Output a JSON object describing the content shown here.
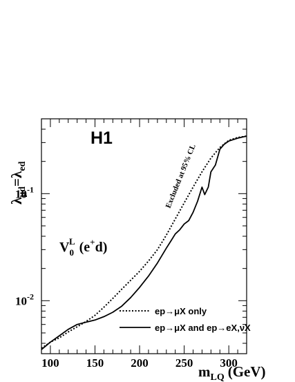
{
  "chart_data": {
    "type": "line",
    "title": "",
    "experiment_label": "H1",
    "model_label": {
      "base": "V",
      "sub": "0",
      "sup": "L",
      "paren": "(e",
      "paren_sup": "+",
      "paren_end": "d)"
    },
    "xlabel": {
      "base": "m",
      "sub": "LQ",
      "unit": "(GeV)"
    },
    "ylabel": {
      "first": "λ",
      "first_sub": "μd",
      "eq": "=λ",
      "second_sub": "ed"
    },
    "annotation": "Excluded at 95% CL",
    "xlim": [
      90,
      320
    ],
    "ylim": [
      0.0032,
      0.5
    ],
    "yscale": "log",
    "x_ticks": [
      100,
      150,
      200,
      250,
      300
    ],
    "y_ticks": [
      {
        "value": 0.01,
        "base": "10",
        "exp": "-2"
      },
      {
        "value": 0.1,
        "base": "10",
        "exp": "-1"
      }
    ],
    "legend_position": "bottom-right",
    "series": [
      {
        "name": "ep→μX only",
        "style": "dotted",
        "points": [
          [
            90,
            0.0036
          ],
          [
            100,
            0.0041
          ],
          [
            110,
            0.0045
          ],
          [
            120,
            0.0051
          ],
          [
            130,
            0.0057
          ],
          [
            140,
            0.0064
          ],
          [
            150,
            0.0073
          ],
          [
            160,
            0.0087
          ],
          [
            170,
            0.0105
          ],
          [
            180,
            0.0128
          ],
          [
            190,
            0.0155
          ],
          [
            200,
            0.0188
          ],
          [
            210,
            0.0235
          ],
          [
            220,
            0.03
          ],
          [
            230,
            0.041
          ],
          [
            240,
            0.058
          ],
          [
            250,
            0.082
          ],
          [
            260,
            0.115
          ],
          [
            270,
            0.16
          ],
          [
            280,
            0.215
          ],
          [
            290,
            0.27
          ],
          [
            300,
            0.315
          ],
          [
            310,
            0.335
          ],
          [
            320,
            0.345
          ]
        ]
      },
      {
        "name": "ep→μX and ep→eX,νX",
        "style": "solid",
        "points": [
          [
            90,
            0.0035
          ],
          [
            100,
            0.0041
          ],
          [
            110,
            0.0047
          ],
          [
            120,
            0.0054
          ],
          [
            130,
            0.006
          ],
          [
            140,
            0.0063
          ],
          [
            150,
            0.0066
          ],
          [
            160,
            0.0071
          ],
          [
            170,
            0.0078
          ],
          [
            180,
            0.0089
          ],
          [
            190,
            0.0107
          ],
          [
            200,
            0.0133
          ],
          [
            210,
            0.017
          ],
          [
            220,
            0.0225
          ],
          [
            230,
            0.031
          ],
          [
            235,
            0.036
          ],
          [
            240,
            0.042
          ],
          [
            245,
            0.046
          ],
          [
            250,
            0.052
          ],
          [
            255,
            0.056
          ],
          [
            260,
            0.067
          ],
          [
            265,
            0.085
          ],
          [
            270,
            0.115
          ],
          [
            273,
            0.098
          ],
          [
            277,
            0.115
          ],
          [
            280,
            0.16
          ],
          [
            285,
            0.185
          ],
          [
            290,
            0.26
          ],
          [
            295,
            0.29
          ],
          [
            300,
            0.31
          ],
          [
            310,
            0.33
          ],
          [
            320,
            0.345
          ]
        ]
      }
    ]
  }
}
